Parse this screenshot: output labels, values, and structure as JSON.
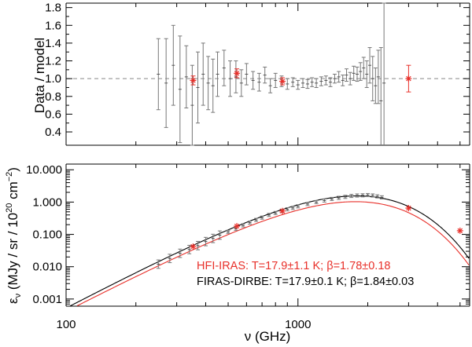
{
  "chart_data": [
    {
      "type": "scatter",
      "title": "",
      "ylabel": "Data / model",
      "xlabel": "",
      "xscale": "log",
      "xlim": [
        100,
        5500
      ],
      "ylim": [
        0.25,
        1.85
      ],
      "yticks": [
        "0.4",
        "0.6",
        "0.8",
        "1.0",
        "1.2",
        "1.4",
        "1.6",
        "1.8"
      ],
      "reference_line": 1.0,
      "series": [
        {
          "name": "HFI-IRAS ratio",
          "color": "#e8302a",
          "x": [
            353,
            545,
            857,
            3000
          ],
          "y": [
            0.98,
            1.06,
            0.97,
            1.0
          ],
          "err": [
            0.05,
            0.05,
            0.04,
            0.15
          ]
        },
        {
          "name": "FIRAS-DIRBE ratio",
          "color": "#555555",
          "x": [
            250,
            270,
            290,
            310,
            330,
            350,
            370,
            390,
            410,
            430,
            450,
            480,
            510,
            540,
            570,
            600,
            640,
            680,
            720,
            760,
            800,
            850,
            900,
            950,
            1000,
            1050,
            1100,
            1150,
            1200,
            1260,
            1320,
            1380,
            1440,
            1500,
            1560,
            1620,
            1680,
            1740,
            1800,
            1860,
            1920,
            1980,
            2040,
            2100,
            2160,
            2220,
            2280,
            2350
          ],
          "y": [
            1.05,
            0.95,
            1.15,
            0.88,
            1.02,
            0.7,
            0.9,
            1.05,
            0.95,
            0.92,
            1.05,
            1.12,
            1.0,
            1.02,
            0.95,
            1.05,
            0.98,
            0.96,
            1.04,
            0.92,
            0.98,
            0.97,
            0.94,
            0.96,
            0.93,
            0.95,
            0.94,
            0.96,
            0.95,
            0.97,
            0.98,
            0.96,
            1.0,
            1.02,
            0.98,
            1.04,
            1.0,
            1.06,
            1.05,
            1.08,
            1.12,
            1.05,
            1.15,
            1.0,
            0.92,
            1.02,
            0.75,
            0.95
          ],
          "err": [
            0.4,
            0.5,
            0.45,
            0.6,
            0.35,
            0.45,
            0.4,
            0.35,
            0.3,
            0.3,
            0.25,
            0.2,
            0.2,
            0.18,
            0.15,
            0.12,
            0.1,
            0.1,
            0.09,
            0.08,
            0.08,
            0.06,
            0.06,
            0.05,
            0.05,
            0.05,
            0.05,
            0.05,
            0.05,
            0.05,
            0.05,
            0.05,
            0.05,
            0.06,
            0.06,
            0.07,
            0.07,
            0.08,
            0.08,
            0.1,
            0.12,
            0.15,
            0.2,
            0.25,
            0.2,
            0.3,
            0.6,
            0.9
          ]
        }
      ]
    },
    {
      "type": "scatter",
      "title": "",
      "ylabel": "ε_ν (MJy / sr / 10^20 cm^-2)",
      "ylabel_main": "ε",
      "ylabel_sub": "ν",
      "ylabel_units_a": " (MJy / sr / 10",
      "ylabel_sup_a": "20",
      "ylabel_units_b": " cm",
      "ylabel_sup_b": "−2",
      "ylabel_close": ")",
      "xlabel": "ν (GHz)",
      "xscale": "log",
      "yscale": "log",
      "xlim": [
        100,
        5500
      ],
      "ylim": [
        0.0006,
        15
      ],
      "xticks": [
        "100",
        "1000"
      ],
      "yticks": [
        "0.001",
        "0.010",
        "0.100",
        "1.000",
        "10.000"
      ],
      "series": [
        {
          "name": "HFI-IRAS",
          "color": "#e8302a",
          "x": [
            353,
            545,
            857,
            3000,
            5000
          ],
          "y": [
            0.042,
            0.18,
            0.53,
            0.65,
            0.13
          ]
        },
        {
          "name": "FIRAS-DIRBE",
          "color": "#444444",
          "x": [
            250,
            280,
            310,
            340,
            370,
            400,
            430,
            460,
            500,
            540,
            580,
            620,
            660,
            700,
            750,
            800,
            850,
            900,
            950,
            1000,
            1100,
            1200,
            1300,
            1400,
            1500,
            1600,
            1700,
            1800,
            1900,
            2000,
            2100,
            2200,
            2300
          ],
          "y": [
            0.012,
            0.018,
            0.026,
            0.034,
            0.045,
            0.06,
            0.075,
            0.095,
            0.12,
            0.15,
            0.19,
            0.23,
            0.28,
            0.33,
            0.4,
            0.46,
            0.53,
            0.6,
            0.66,
            0.74,
            0.87,
            1.0,
            1.12,
            1.25,
            1.35,
            1.45,
            1.55,
            1.6,
            1.62,
            1.65,
            1.6,
            1.5,
            1.4
          ]
        }
      ],
      "fits": [
        {
          "label": "HFI-IRAS: T=17.9±1.1 K; β=1.78±0.18",
          "color": "#e8302a",
          "T": 17.9,
          "beta": 1.78
        },
        {
          "label": "FIRAS-DIRBE: T=17.9±0.1 K; β=1.84±0.03",
          "color": "#000000",
          "T": 17.9,
          "beta": 1.84
        }
      ]
    }
  ]
}
